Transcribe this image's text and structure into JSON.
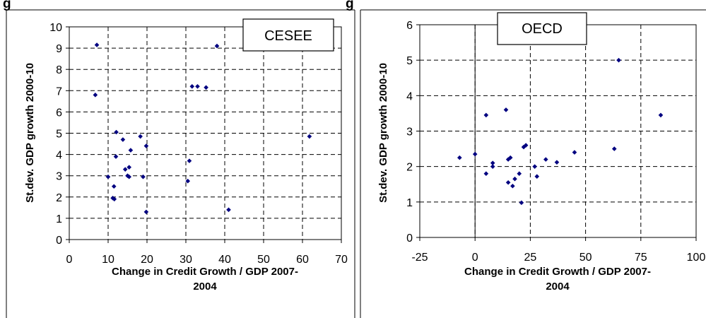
{
  "header_fragments": [
    "g",
    "g"
  ],
  "colors": {
    "marker": "#000080",
    "grid": "#000000",
    "frame": "#000000"
  },
  "chart_data": [
    {
      "type": "scatter",
      "title": "CESEE",
      "xlabel_lines": [
        "Change in Credit Growth / GDP 2007-",
        "2004"
      ],
      "ylabel": "St.dev. GDP growth 2000-10",
      "xlim": [
        0,
        70
      ],
      "ylim": [
        0,
        10
      ],
      "xticks": [
        "0",
        "10",
        "20",
        "30",
        "40",
        "50",
        "60",
        "70"
      ],
      "yticks": [
        "0",
        "1",
        "2",
        "3",
        "4",
        "5",
        "6",
        "7",
        "8",
        "9",
        "10"
      ],
      "grid": "dashed",
      "legend_position": "top-right",
      "points": [
        {
          "x": 7.1,
          "y": 9.15
        },
        {
          "x": 6.7,
          "y": 6.8
        },
        {
          "x": 12.1,
          "y": 5.05
        },
        {
          "x": 13.8,
          "y": 4.7
        },
        {
          "x": 18.3,
          "y": 4.85
        },
        {
          "x": 19.8,
          "y": 4.4
        },
        {
          "x": 15.8,
          "y": 4.2
        },
        {
          "x": 12.0,
          "y": 3.9
        },
        {
          "x": 14.4,
          "y": 3.3
        },
        {
          "x": 15.4,
          "y": 3.4
        },
        {
          "x": 15.0,
          "y": 3.0
        },
        {
          "x": 15.4,
          "y": 2.95
        },
        {
          "x": 10.0,
          "y": 2.95
        },
        {
          "x": 19.0,
          "y": 2.95
        },
        {
          "x": 11.5,
          "y": 2.5
        },
        {
          "x": 11.2,
          "y": 1.95
        },
        {
          "x": 11.6,
          "y": 1.9
        },
        {
          "x": 19.8,
          "y": 1.3
        },
        {
          "x": 31.6,
          "y": 7.2
        },
        {
          "x": 33.0,
          "y": 7.2
        },
        {
          "x": 35.2,
          "y": 7.15
        },
        {
          "x": 38.0,
          "y": 9.1
        },
        {
          "x": 30.9,
          "y": 3.7
        },
        {
          "x": 30.5,
          "y": 2.75
        },
        {
          "x": 41.0,
          "y": 1.4
        },
        {
          "x": 61.8,
          "y": 4.85
        }
      ]
    },
    {
      "type": "scatter",
      "title": "OECD",
      "xlabel_lines": [
        "Change in Credit Growth / GDP 2007-",
        "2004"
      ],
      "ylabel": "St.dev. GDP growth 2000-10",
      "xlim": [
        -25,
        100
      ],
      "ylim": [
        0,
        6
      ],
      "xticks": [
        "-25",
        "0",
        "25",
        "50",
        "75",
        "100"
      ],
      "yticks": [
        "0",
        "1",
        "2",
        "3",
        "4",
        "5",
        "6"
      ],
      "grid": "dashed",
      "legend_position": "top-center",
      "points": [
        {
          "x": -7,
          "y": 2.25
        },
        {
          "x": 0,
          "y": 2.35
        },
        {
          "x": 5,
          "y": 3.45
        },
        {
          "x": 5,
          "y": 1.8
        },
        {
          "x": 8,
          "y": 2.0
        },
        {
          "x": 8,
          "y": 2.1
        },
        {
          "x": 14,
          "y": 3.6
        },
        {
          "x": 15,
          "y": 2.2
        },
        {
          "x": 16,
          "y": 2.25
        },
        {
          "x": 15,
          "y": 1.55
        },
        {
          "x": 17,
          "y": 1.45
        },
        {
          "x": 18,
          "y": 1.65
        },
        {
          "x": 20,
          "y": 1.8
        },
        {
          "x": 22,
          "y": 2.55
        },
        {
          "x": 23,
          "y": 2.6
        },
        {
          "x": 21,
          "y": 0.98
        },
        {
          "x": 27,
          "y": 2.0
        },
        {
          "x": 28,
          "y": 1.72
        },
        {
          "x": 32,
          "y": 2.2
        },
        {
          "x": 37,
          "y": 2.12
        },
        {
          "x": 45,
          "y": 2.4
        },
        {
          "x": 63,
          "y": 2.5
        },
        {
          "x": 65,
          "y": 5.0
        },
        {
          "x": 84,
          "y": 3.45
        }
      ]
    }
  ]
}
